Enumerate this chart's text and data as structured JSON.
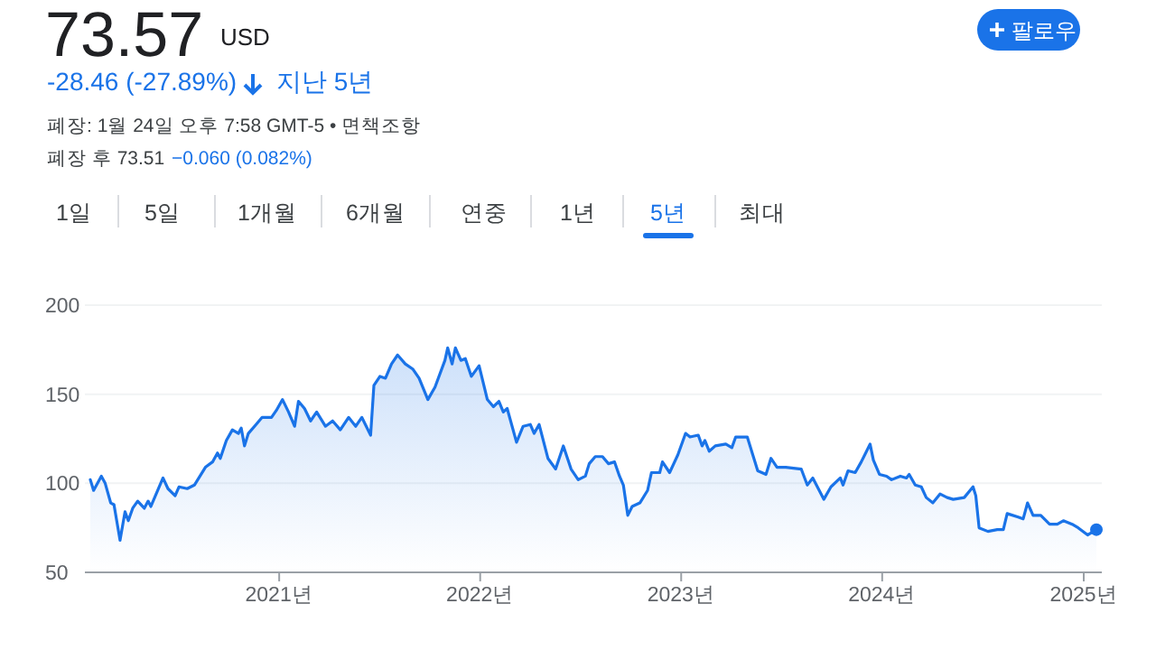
{
  "chart_data": {
    "type": "area",
    "title": "73.57",
    "annotations": [
      "USD",
      "-28.46 (-27.89%)",
      "지난 5년",
      "폐장: 1월 24일 오후 7:58 GMT-5 • 면책조항",
      "폐장 후 73.51",
      "−0.060 (0.082%)",
      "팔로우",
      "1일",
      "5일",
      "1개월",
      "6개월",
      "연중",
      "1년",
      "5년",
      "최대"
    ],
    "x": [
      "2020-01-24",
      "2020-01-30",
      "2020-02-13",
      "2020-02-20",
      "2020-03-01",
      "2020-03-07",
      "2020-03-18",
      "2020-03-27",
      "2020-04-02",
      "2020-04-10",
      "2020-04-19",
      "2020-05-01",
      "2020-05-08",
      "2020-05-13",
      "2020-06-04",
      "2020-06-13",
      "2020-06-26",
      "2020-07-03",
      "2020-07-18",
      "2020-07-31",
      "2020-08-20",
      "2020-09-02",
      "2020-09-11",
      "2020-09-16",
      "2020-09-27",
      "2020-10-08",
      "2020-10-19",
      "2020-10-24",
      "2020-10-30",
      "2020-11-06",
      "2020-11-20",
      "2020-12-01",
      "2020-12-18",
      "2020-12-27",
      "2021-01-07",
      "2021-01-18",
      "2021-01-29",
      "2021-02-05",
      "2021-02-16",
      "2021-02-27",
      "2021-03-10",
      "2021-03-26",
      "2021-04-08",
      "2021-04-22",
      "2021-05-07",
      "2021-05-20",
      "2021-05-31",
      "2021-06-16",
      "2021-06-22",
      "2021-07-03",
      "2021-07-13",
      "2021-07-24",
      "2021-08-04",
      "2021-08-18",
      "2021-09-01",
      "2021-09-12",
      "2021-09-28",
      "2021-10-11",
      "2021-10-29",
      "2021-11-03",
      "2021-11-11",
      "2021-11-17",
      "2021-11-27",
      "2021-12-05",
      "2021-12-16",
      "2021-12-30",
      "2022-01-14",
      "2022-01-25",
      "2022-02-04",
      "2022-02-12",
      "2022-02-19",
      "2022-03-08",
      "2022-03-20",
      "2022-04-02",
      "2022-04-09",
      "2022-04-18",
      "2022-05-04",
      "2022-05-18",
      "2022-06-01",
      "2022-06-15",
      "2022-06-28",
      "2022-07-11",
      "2022-07-18",
      "2022-07-29",
      "2022-08-11",
      "2022-08-22",
      "2022-09-02",
      "2022-09-11",
      "2022-09-18",
      "2022-09-26",
      "2022-10-04",
      "2022-10-18",
      "2022-11-01",
      "2022-11-08",
      "2022-11-23",
      "2022-11-28",
      "2022-12-11",
      "2022-12-26",
      "2023-01-09",
      "2023-01-17",
      "2023-02-01",
      "2023-02-08",
      "2023-02-13",
      "2023-02-21",
      "2023-03-04",
      "2023-03-23",
      "2023-04-03",
      "2023-04-10",
      "2023-05-01",
      "2023-05-20",
      "2023-06-04",
      "2023-06-13",
      "2023-06-24",
      "2023-07-10",
      "2023-08-07",
      "2023-08-18",
      "2023-08-28",
      "2023-09-17",
      "2023-09-30",
      "2023-10-17",
      "2023-10-22",
      "2023-10-31",
      "2023-11-13",
      "2023-11-24",
      "2023-12-10",
      "2023-12-16",
      "2023-12-27",
      "2024-01-09",
      "2024-01-18",
      "2024-02-03",
      "2024-02-14",
      "2024-02-19",
      "2024-03-01",
      "2024-03-12",
      "2024-03-21",
      "2024-04-02",
      "2024-04-15",
      "2024-04-28",
      "2024-05-09",
      "2024-05-29",
      "2024-06-14",
      "2024-06-19",
      "2024-06-25",
      "2024-07-11",
      "2024-07-28",
      "2024-08-08",
      "2024-08-15",
      "2024-09-04",
      "2024-09-13",
      "2024-09-21",
      "2024-10-01",
      "2024-10-15",
      "2024-10-31",
      "2024-11-14",
      "2024-11-25",
      "2024-12-11",
      "2024-12-22",
      "2025-01-08",
      "2025-01-24"
    ],
    "series": [
      {
        "color": "#1a73e8",
        "values": [
          102,
          96,
          104,
          100,
          89,
          88,
          68,
          84,
          79,
          86,
          90,
          86,
          90,
          87,
          103,
          97,
          93,
          98,
          97,
          99,
          109,
          112,
          117,
          114,
          124,
          130,
          128,
          131,
          121,
          128,
          133,
          137,
          137,
          141,
          147,
          140,
          132,
          146,
          142,
          135,
          140,
          132,
          135,
          130,
          137,
          132,
          137,
          127,
          155,
          160,
          159,
          167,
          172,
          167,
          164,
          159,
          147,
          154,
          169,
          176,
          167,
          176,
          169,
          170,
          160,
          166,
          147,
          143,
          146,
          140,
          142,
          123,
          132,
          133,
          128,
          133,
          114,
          108,
          121,
          108,
          102,
          104,
          111,
          115,
          115,
          111,
          112,
          104,
          99,
          82,
          87,
          89,
          96,
          106,
          106,
          112,
          106,
          116,
          128,
          126,
          127,
          121,
          124,
          118,
          121,
          122,
          120,
          126,
          126,
          107,
          105,
          114,
          109,
          109,
          108,
          99,
          103,
          91,
          98,
          103,
          99,
          107,
          106,
          112,
          122,
          113,
          105,
          104,
          102,
          104,
          103,
          105,
          99,
          98,
          92,
          89,
          94,
          92,
          91,
          92,
          98,
          93,
          75,
          73,
          74,
          74,
          83,
          81,
          80,
          89,
          82,
          82,
          77,
          77,
          79,
          77,
          75,
          71,
          74
        ]
      }
    ],
    "xlim": [
      "2020-01-24",
      "2025-01-24"
    ],
    "xticks": [
      {
        "value": "2021-01-01",
        "label": "2021년"
      },
      {
        "value": "2022-01-01",
        "label": "2022년"
      },
      {
        "value": "2023-01-01",
        "label": "2023년"
      },
      {
        "value": "2024-01-01",
        "label": "2024년"
      },
      {
        "value": "2025-01-01",
        "label": "2025년"
      }
    ],
    "ylim": [
      50,
      200
    ],
    "yticks": [
      50,
      100,
      150,
      200
    ],
    "grid": "y"
  }
}
